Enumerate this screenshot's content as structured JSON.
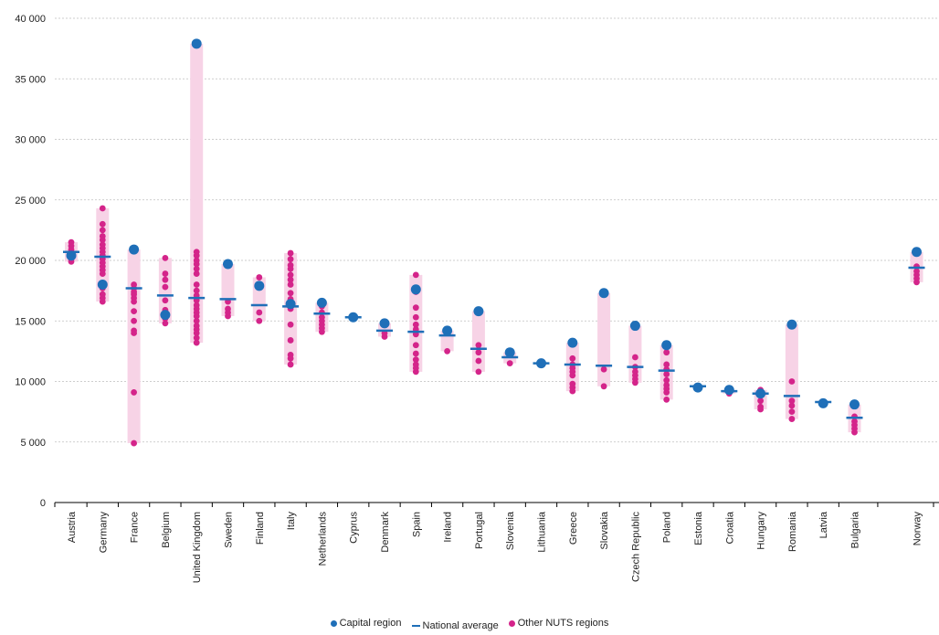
{
  "colors": {
    "capital": "#1f6fb8",
    "national": "#1f6fb8",
    "other": "#d4248a",
    "range": "#f7d3e6",
    "grid": "#bfbfbf",
    "axis": "#000000"
  },
  "legend": {
    "capital": "Capital region",
    "national": "National average",
    "other": "Other NUTS regions"
  },
  "chart_data": {
    "type": "scatter",
    "ylim": [
      0,
      40000
    ],
    "yticks": [
      {
        "value": 0,
        "label": "0"
      },
      {
        "value": 5000,
        "label": "5 000"
      },
      {
        "value": 10000,
        "label": "10 000"
      },
      {
        "value": 15000,
        "label": "15 000"
      },
      {
        "value": 20000,
        "label": "20 000"
      },
      {
        "value": 25000,
        "label": "25 000"
      },
      {
        "value": 30000,
        "label": "30 000"
      },
      {
        "value": 35000,
        "label": "35 000"
      },
      {
        "value": 40000,
        "label": "40 000"
      }
    ],
    "grid": true,
    "legend_position": "bottom",
    "countries": [
      {
        "name": "Austria",
        "capital": 20400,
        "national": 20700,
        "others": [
          21500,
          21200,
          20900,
          20600,
          20300,
          20100,
          19900
        ]
      },
      {
        "name": "Germany",
        "capital": 18000,
        "national": 20300,
        "others": [
          24300,
          23000,
          22500,
          22000,
          21700,
          21300,
          21000,
          20700,
          20400,
          20100,
          19800,
          19500,
          19200,
          18900,
          17700,
          17200,
          16900,
          16600
        ]
      },
      {
        "name": "France",
        "capital": 20900,
        "national": 17700,
        "others": [
          18000,
          17700,
          17400,
          17200,
          16900,
          16600,
          15800,
          15000,
          14200,
          14000,
          9100,
          4900
        ]
      },
      {
        "name": "Belgium",
        "capital": 15500,
        "national": 17100,
        "others": [
          20200,
          18900,
          18400,
          17800,
          16700,
          15900,
          15200,
          14800
        ]
      },
      {
        "name": "United Kingdom",
        "capital": 37900,
        "national": 16900,
        "others": [
          20700,
          20400,
          20000,
          19700,
          19300,
          18900,
          18000,
          17500,
          17100,
          16700,
          16300,
          16000,
          15700,
          15400,
          15000,
          14600,
          14300,
          14000,
          13600,
          13200
        ]
      },
      {
        "name": "Sweden",
        "capital": 19700,
        "national": 16800,
        "others": [
          16600,
          16000,
          15700,
          15400
        ]
      },
      {
        "name": "Finland",
        "capital": 17900,
        "national": 16300,
        "others": [
          18600,
          15700,
          15000
        ]
      },
      {
        "name": "Italy",
        "capital": 16400,
        "national": 16200,
        "others": [
          20600,
          20100,
          19600,
          19300,
          18800,
          18400,
          18000,
          17300,
          16800,
          16000,
          14700,
          13400,
          12200,
          11900,
          11400
        ]
      },
      {
        "name": "Netherlands",
        "capital": 16500,
        "national": 15600,
        "others": [
          16200,
          15700,
          15300,
          15000,
          14700,
          14400,
          14100
        ]
      },
      {
        "name": "Cyprus",
        "capital": 15300,
        "national": 15300,
        "others": []
      },
      {
        "name": "Denmark",
        "capital": 14800,
        "national": 14200,
        "others": [
          14000,
          13700
        ]
      },
      {
        "name": "Spain",
        "capital": 17600,
        "national": 14100,
        "others": [
          18800,
          17400,
          16100,
          15300,
          14700,
          14300,
          13900,
          13000,
          12300,
          11800,
          11400,
          11100,
          10800
        ]
      },
      {
        "name": "Ireland",
        "capital": 14200,
        "national": 13800,
        "others": [
          12500
        ]
      },
      {
        "name": "Portugal",
        "capital": 15800,
        "national": 12700,
        "others": [
          13000,
          12400,
          11700,
          10800
        ]
      },
      {
        "name": "Slovenia",
        "capital": 12400,
        "national": 12000,
        "others": [
          11500
        ]
      },
      {
        "name": "Lithuania",
        "capital": 11500,
        "national": 11500,
        "others": []
      },
      {
        "name": "Greece",
        "capital": 13200,
        "national": 11400,
        "others": [
          11900,
          11400,
          11100,
          10800,
          10500,
          9800,
          9500,
          9200
        ]
      },
      {
        "name": "Slovakia",
        "capital": 17300,
        "national": 11300,
        "others": [
          11000,
          9600
        ]
      },
      {
        "name": "Czech Republic",
        "capital": 14600,
        "national": 11200,
        "others": [
          12000,
          11200,
          10800,
          10500,
          10200,
          9900
        ]
      },
      {
        "name": "Poland",
        "capital": 13000,
        "national": 10900,
        "others": [
          12400,
          11400,
          11000,
          10600,
          10100,
          9700,
          9400,
          9100,
          8500
        ]
      },
      {
        "name": "Estonia",
        "capital": 9500,
        "national": 9600,
        "others": []
      },
      {
        "name": "Croatia",
        "capital": 9300,
        "national": 9200,
        "others": [
          9000
        ]
      },
      {
        "name": "Hungary",
        "capital": 9000,
        "national": 9000,
        "others": [
          9300,
          8400,
          7900,
          7700
        ]
      },
      {
        "name": "Romania",
        "capital": 14700,
        "national": 8800,
        "others": [
          10000,
          8400,
          8000,
          7500,
          6900
        ]
      },
      {
        "name": "Latvia",
        "capital": 8200,
        "national": 8300,
        "others": []
      },
      {
        "name": "Bulgaria",
        "capital": 8100,
        "national": 7000,
        "others": [
          7100,
          6700,
          6400,
          6100,
          5800
        ]
      },
      {
        "name": "Norway",
        "capital": 20700,
        "national": 19400,
        "others": [
          19500,
          19100,
          18800,
          18500,
          18200
        ]
      }
    ]
  }
}
